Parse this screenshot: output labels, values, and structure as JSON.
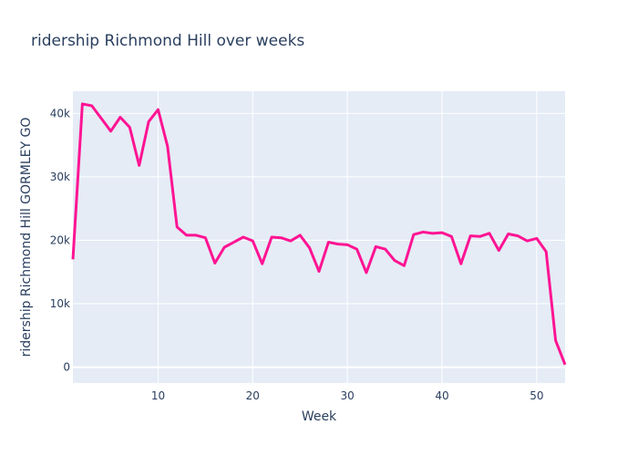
{
  "chart_data": {
    "type": "line",
    "title": "ridership Richmond Hill over weeks",
    "xlabel": "Week",
    "ylabel": "ridership Richmond Hill GORMLEY GO",
    "xlim": [
      1,
      53
    ],
    "ylim": [
      -2500,
      43500
    ],
    "x_ticks": [
      10,
      20,
      30,
      40,
      50
    ],
    "x_tick_labels": [
      "10",
      "20",
      "30",
      "40",
      "50"
    ],
    "y_ticks": [
      0,
      10000,
      20000,
      30000,
      40000
    ],
    "y_tick_labels": [
      "0",
      "10k",
      "20k",
      "30k",
      "40k"
    ],
    "grid": true,
    "series": [
      {
        "name": "ridership",
        "color": "#ff1493",
        "x": [
          1,
          2,
          3,
          4,
          5,
          6,
          7,
          8,
          9,
          10,
          11,
          12,
          13,
          14,
          15,
          16,
          17,
          18,
          19,
          20,
          21,
          22,
          23,
          24,
          25,
          26,
          27,
          28,
          29,
          30,
          31,
          32,
          33,
          34,
          35,
          36,
          37,
          38,
          39,
          40,
          41,
          42,
          43,
          44,
          45,
          46,
          47,
          48,
          49,
          50,
          51,
          52,
          53
        ],
        "y": [
          17000,
          41500,
          41200,
          39200,
          37200,
          39400,
          37800,
          31800,
          38700,
          40600,
          34800,
          22100,
          20800,
          20800,
          20400,
          16400,
          18900,
          19700,
          20500,
          19900,
          16300,
          20500,
          20400,
          19900,
          20800,
          18800,
          15100,
          19700,
          19400,
          19300,
          18600,
          14900,
          19000,
          18600,
          16800,
          16000,
          20900,
          21300,
          21100,
          21200,
          20600,
          16300,
          20700,
          20600,
          21100,
          18400,
          21000,
          20700,
          19900,
          20300,
          18200,
          4200,
          400
        ]
      }
    ],
    "background_color": "#e5ecf6",
    "grid_color": "#ffffff"
  }
}
